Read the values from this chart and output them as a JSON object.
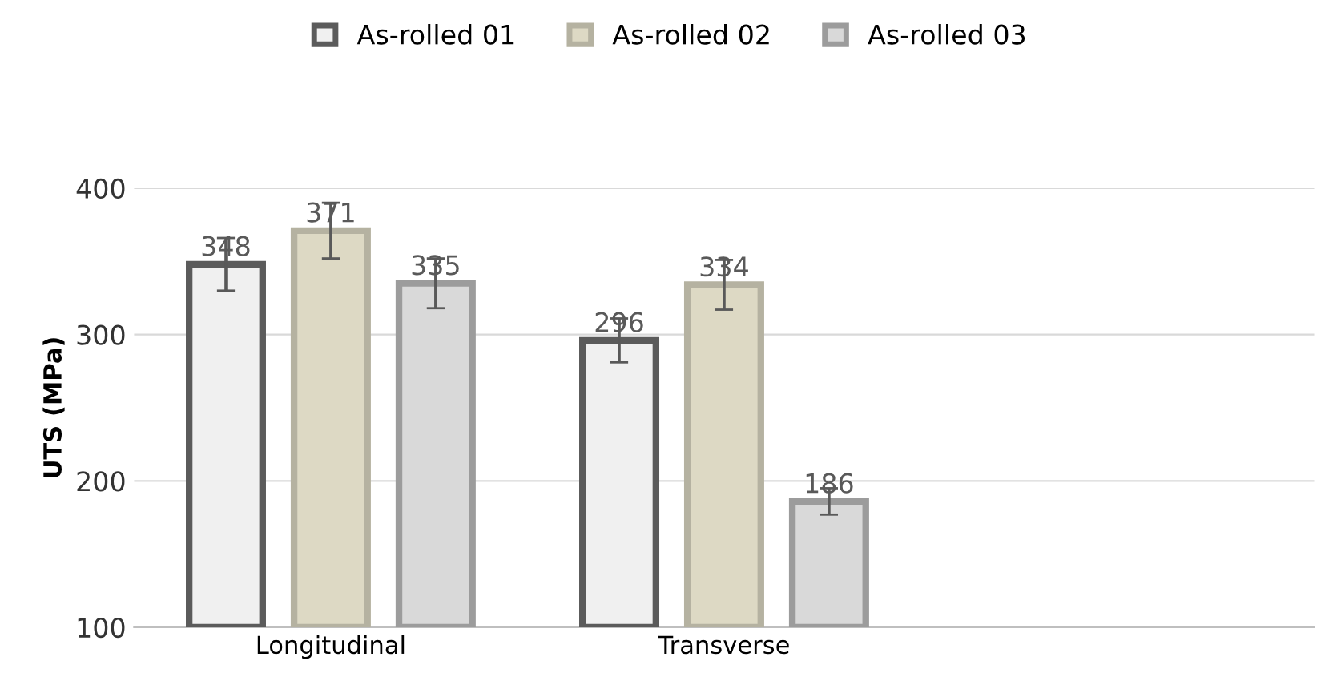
{
  "chart_data": {
    "type": "bar",
    "ylabel": "UTS (MPa)",
    "categories": [
      "Longitudinal",
      "Transverse",
      null
    ],
    "series": [
      {
        "name": "As-rolled 01",
        "color": "#f0f0f0",
        "values": [
          348,
          296,
          null
        ],
        "errors": [
          18,
          15,
          null
        ]
      },
      {
        "name": "As-rolled 02",
        "color": "#ddd9c4",
        "values": [
          371,
          334,
          null
        ],
        "errors": [
          19,
          17,
          null
        ]
      },
      {
        "name": "As-rolled 03",
        "color": "#d9d9d9",
        "values": [
          335,
          186,
          null
        ],
        "errors": [
          17,
          9,
          null
        ]
      }
    ],
    "ylim": [
      100,
      400
    ],
    "yticks": [
      100,
      200,
      300,
      400
    ],
    "grid": "y",
    "legend": "top",
    "data_labels": true
  }
}
